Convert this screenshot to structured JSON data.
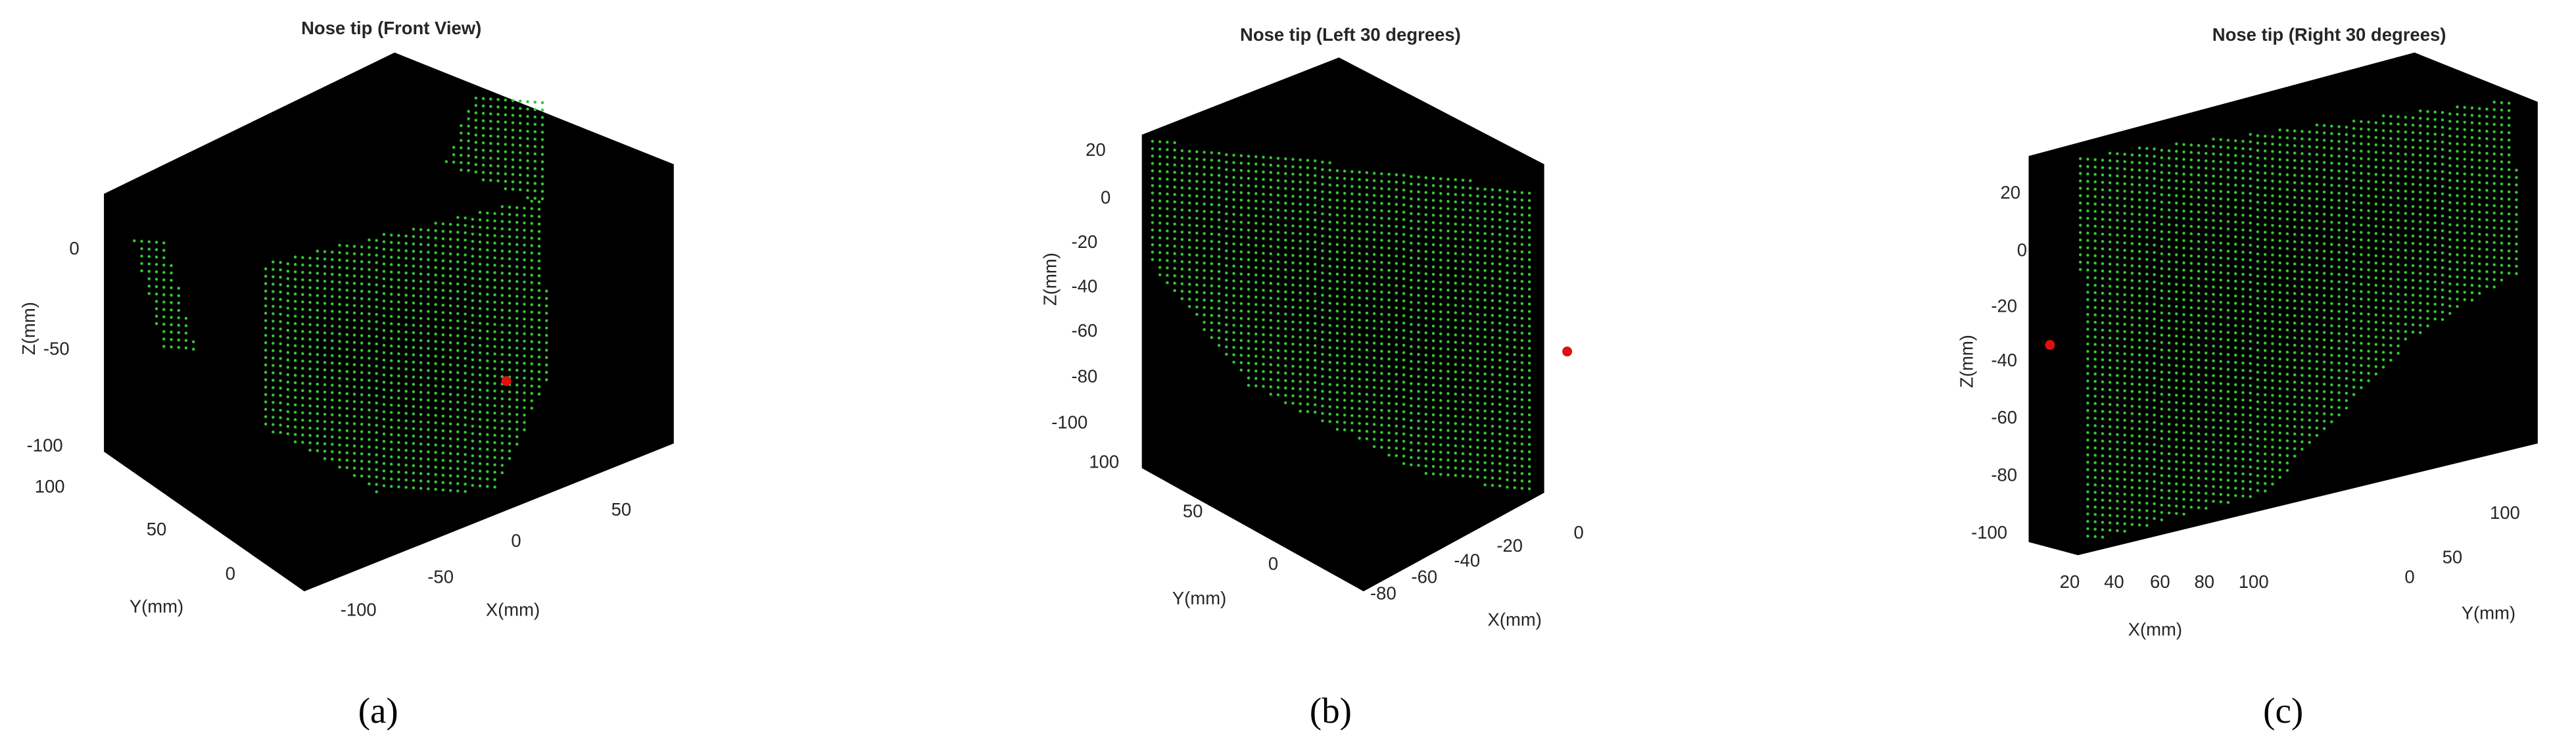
{
  "panels": [
    {
      "title": "Nose tip (Front View)",
      "z_label": "Z(mm)",
      "z_ticks": [
        0,
        -50,
        -100
      ],
      "y_label": "Y(mm)",
      "y_ticks": [
        100,
        50,
        0
      ],
      "x_label": "X(mm)",
      "x_ticks": [
        -100,
        -50,
        0,
        50
      ],
      "caption": "(a)"
    },
    {
      "title": "Nose tip (Left 30 degrees)",
      "z_label": "Z(mm)",
      "z_ticks": [
        20,
        0,
        -20,
        -40,
        -60,
        -80,
        -100
      ],
      "y_label": "Y(mm)",
      "y_ticks": [
        100,
        50,
        0
      ],
      "x_label": "X(mm)",
      "x_ticks": [
        -80,
        -60,
        -40,
        -20,
        0
      ],
      "caption": "(b)"
    },
    {
      "title": "Nose tip (Right 30 degrees)",
      "z_label": "Z(mm)",
      "z_ticks": [
        20,
        0,
        -20,
        -40,
        -60,
        -80,
        -100
      ],
      "y_label": "Y(mm)",
      "y_ticks": [
        100,
        50,
        0
      ],
      "x_label": "X(mm)",
      "x_ticks": [
        20,
        40,
        60,
        80,
        100
      ],
      "caption": "(c)"
    }
  ]
}
